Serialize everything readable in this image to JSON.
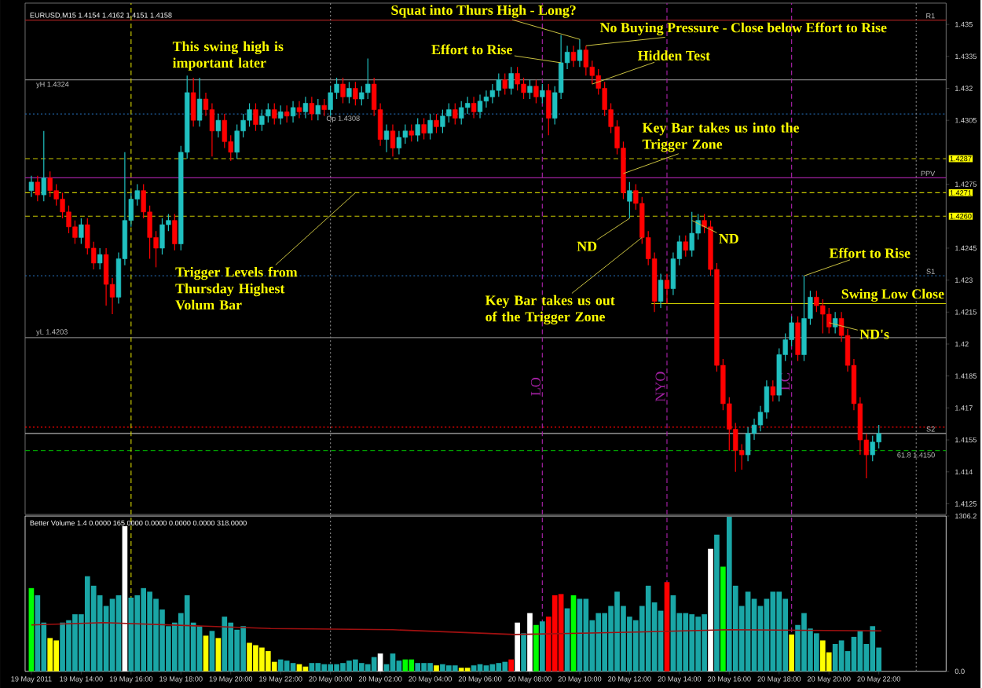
{
  "chart_data": [
    {
      "type": "candlestick",
      "title": "EURUSD,M15  1.4154 1.4162 1.4151 1.4158",
      "x": [
        "2011-05-19T12:00",
        "2011-05-19T12:15",
        "2011-05-19T12:30",
        "2011-05-19T12:45",
        "2011-05-19T13:00",
        "2011-05-19T13:15",
        "2011-05-19T13:30",
        "2011-05-19T13:45",
        "2011-05-19T14:00",
        "2011-05-19T14:15",
        "2011-05-19T14:30",
        "2011-05-19T14:45",
        "2011-05-19T15:00",
        "2011-05-19T15:15",
        "2011-05-19T15:30",
        "2011-05-19T15:45",
        "2011-05-19T16:00",
        "2011-05-19T16:15",
        "2011-05-19T16:30",
        "2011-05-19T16:45",
        "2011-05-19T17:00",
        "2011-05-19T17:15",
        "2011-05-19T17:30",
        "2011-05-19T17:45",
        "2011-05-19T18:00",
        "2011-05-19T18:15",
        "2011-05-19T18:30",
        "2011-05-19T18:45",
        "2011-05-19T19:00",
        "2011-05-19T19:15",
        "2011-05-19T19:30",
        "2011-05-19T19:45",
        "2011-05-19T20:00",
        "2011-05-19T20:15",
        "2011-05-19T20:30",
        "2011-05-19T20:45",
        "2011-05-19T21:00",
        "2011-05-19T21:15",
        "2011-05-19T21:30",
        "2011-05-19T21:45",
        "2011-05-19T22:00",
        "2011-05-19T22:15",
        "2011-05-19T22:30",
        "2011-05-19T22:45",
        "2011-05-19T23:00",
        "2011-05-19T23:15",
        "2011-05-19T23:30",
        "2011-05-19T23:45",
        "2011-05-20T00:00",
        "2011-05-20T00:15",
        "2011-05-20T00:30",
        "2011-05-20T00:45",
        "2011-05-20T01:00",
        "2011-05-20T01:15",
        "2011-05-20T01:30",
        "2011-05-20T01:45",
        "2011-05-20T02:00",
        "2011-05-20T02:15",
        "2011-05-20T02:30",
        "2011-05-20T02:45",
        "2011-05-20T03:00",
        "2011-05-20T03:15",
        "2011-05-20T03:30",
        "2011-05-20T03:45",
        "2011-05-20T04:00",
        "2011-05-20T04:15",
        "2011-05-20T04:30",
        "2011-05-20T04:45",
        "2011-05-20T05:00",
        "2011-05-20T05:15",
        "2011-05-20T05:30",
        "2011-05-20T05:45",
        "2011-05-20T06:00",
        "2011-05-20T06:15",
        "2011-05-20T06:30",
        "2011-05-20T06:45",
        "2011-05-20T07:00",
        "2011-05-20T07:15",
        "2011-05-20T07:30",
        "2011-05-20T07:45",
        "2011-05-20T08:00",
        "2011-05-20T08:15",
        "2011-05-20T08:30",
        "2011-05-20T08:45",
        "2011-05-20T09:00",
        "2011-05-20T09:15",
        "2011-05-20T09:30",
        "2011-05-20T09:45",
        "2011-05-20T10:00",
        "2011-05-20T10:15",
        "2011-05-20T10:30",
        "2011-05-20T10:45",
        "2011-05-20T11:00",
        "2011-05-20T11:15",
        "2011-05-20T11:30",
        "2011-05-20T11:45",
        "2011-05-20T12:00",
        "2011-05-20T12:15",
        "2011-05-20T12:30",
        "2011-05-20T12:45",
        "2011-05-20T13:00",
        "2011-05-20T13:15",
        "2011-05-20T13:30",
        "2011-05-20T13:45",
        "2011-05-20T14:00",
        "2011-05-20T14:15",
        "2011-05-20T14:30",
        "2011-05-20T14:45",
        "2011-05-20T15:00",
        "2011-05-20T15:15",
        "2011-05-20T15:30",
        "2011-05-20T15:45",
        "2011-05-20T16:00",
        "2011-05-20T16:15",
        "2011-05-20T16:30",
        "2011-05-20T16:45",
        "2011-05-20T17:00",
        "2011-05-20T17:15",
        "2011-05-20T17:30",
        "2011-05-20T17:45",
        "2011-05-20T18:00",
        "2011-05-20T18:15",
        "2011-05-20T18:30",
        "2011-05-20T18:45",
        "2011-05-20T19:00",
        "2011-05-20T19:15",
        "2011-05-20T19:30",
        "2011-05-20T19:45",
        "2011-05-20T20:00",
        "2011-05-20T20:15",
        "2011-05-20T20:30",
        "2011-05-20T20:45",
        "2011-05-20T21:00",
        "2011-05-20T21:15",
        "2011-05-20T21:30",
        "2011-05-20T21:45",
        "2011-05-20T22:00"
      ],
      "ohlc": [
        [
          1.4272,
          1.4279,
          1.4269,
          1.4276
        ],
        [
          1.4276,
          1.4279,
          1.4267,
          1.427
        ],
        [
          1.427,
          1.43,
          1.4267,
          1.4278
        ],
        [
          1.4278,
          1.4281,
          1.4269,
          1.4272
        ],
        [
          1.4272,
          1.4275,
          1.4265,
          1.4268
        ],
        [
          1.4268,
          1.4271,
          1.4259,
          1.4262
        ],
        [
          1.4262,
          1.4265,
          1.4252,
          1.4255
        ],
        [
          1.4255,
          1.4258,
          1.4247,
          1.425
        ],
        [
          1.425,
          1.4259,
          1.4247,
          1.4256
        ],
        [
          1.4256,
          1.4259,
          1.4242,
          1.4245
        ],
        [
          1.4245,
          1.4248,
          1.4235,
          1.4238
        ],
        [
          1.4238,
          1.4245,
          1.4235,
          1.4242
        ],
        [
          1.4242,
          1.4245,
          1.4218,
          1.4228
        ],
        [
          1.4228,
          1.4231,
          1.4214,
          1.4222
        ],
        [
          1.4222,
          1.4243,
          1.4219,
          1.424
        ],
        [
          1.424,
          1.429,
          1.4237,
          1.4258
        ],
        [
          1.4258,
          1.4271,
          1.4255,
          1.4268
        ],
        [
          1.4268,
          1.4275,
          1.4265,
          1.4272
        ],
        [
          1.4272,
          1.4275,
          1.4259,
          1.4262
        ],
        [
          1.4262,
          1.4265,
          1.424,
          1.425
        ],
        [
          1.425,
          1.4253,
          1.4236,
          1.4245
        ],
        [
          1.4245,
          1.4259,
          1.4242,
          1.4256
        ],
        [
          1.4256,
          1.4261,
          1.4253,
          1.4258
        ],
        [
          1.4258,
          1.4261,
          1.4244,
          1.4247
        ],
        [
          1.4247,
          1.4293,
          1.4244,
          1.429
        ],
        [
          1.429,
          1.4326,
          1.4287,
          1.4318
        ],
        [
          1.4318,
          1.4325,
          1.4302,
          1.4305
        ],
        [
          1.4305,
          1.4325,
          1.4302,
          1.4315
        ],
        [
          1.4315,
          1.4318,
          1.4307,
          1.431
        ],
        [
          1.431,
          1.4313,
          1.4288,
          1.43
        ],
        [
          1.43,
          1.4308,
          1.4297,
          1.4305
        ],
        [
          1.4305,
          1.4308,
          1.4292,
          1.4295
        ],
        [
          1.4295,
          1.4298,
          1.4286,
          1.429
        ],
        [
          1.429,
          1.4303,
          1.4287,
          1.43
        ],
        [
          1.43,
          1.4308,
          1.4297,
          1.4305
        ],
        [
          1.4305,
          1.4313,
          1.4302,
          1.431
        ],
        [
          1.431,
          1.4313,
          1.43,
          1.4303
        ],
        [
          1.4303,
          1.431,
          1.43,
          1.4307
        ],
        [
          1.4307,
          1.4313,
          1.4304,
          1.431
        ],
        [
          1.431,
          1.4313,
          1.4303,
          1.4306
        ],
        [
          1.4306,
          1.4312,
          1.4303,
          1.4309
        ],
        [
          1.4309,
          1.4312,
          1.4304,
          1.4307
        ],
        [
          1.4307,
          1.4314,
          1.4304,
          1.4311
        ],
        [
          1.4311,
          1.4314,
          1.4306,
          1.4309
        ],
        [
          1.4309,
          1.4316,
          1.4306,
          1.4313
        ],
        [
          1.4313,
          1.4316,
          1.4305,
          1.4308
        ],
        [
          1.4308,
          1.4315,
          1.4305,
          1.4312
        ],
        [
          1.4312,
          1.4315,
          1.4307,
          1.431
        ],
        [
          1.431,
          1.4321,
          1.4307,
          1.4318
        ],
        [
          1.4318,
          1.4325,
          1.4315,
          1.4322
        ],
        [
          1.4322,
          1.4325,
          1.4313,
          1.4316
        ],
        [
          1.4316,
          1.4323,
          1.4313,
          1.432
        ],
        [
          1.432,
          1.4323,
          1.4312,
          1.4315
        ],
        [
          1.4315,
          1.4321,
          1.4312,
          1.4318
        ],
        [
          1.4318,
          1.4334,
          1.4315,
          1.4322
        ],
        [
          1.4322,
          1.4325,
          1.4307,
          1.431
        ],
        [
          1.431,
          1.4313,
          1.4293,
          1.4296
        ],
        [
          1.4296,
          1.4303,
          1.429,
          1.43
        ],
        [
          1.43,
          1.4303,
          1.4288,
          1.4292
        ],
        [
          1.4292,
          1.43,
          1.4289,
          1.4297
        ],
        [
          1.4297,
          1.4303,
          1.4294,
          1.43
        ],
        [
          1.43,
          1.4303,
          1.4295,
          1.4298
        ],
        [
          1.4298,
          1.4306,
          1.4295,
          1.4303
        ],
        [
          1.4303,
          1.4306,
          1.4296,
          1.4299
        ],
        [
          1.4299,
          1.4308,
          1.4296,
          1.4305
        ],
        [
          1.4305,
          1.4308,
          1.4299,
          1.4302
        ],
        [
          1.4302,
          1.431,
          1.4299,
          1.4307
        ],
        [
          1.4307,
          1.4313,
          1.4304,
          1.431
        ],
        [
          1.431,
          1.4313,
          1.4303,
          1.4306
        ],
        [
          1.4306,
          1.4314,
          1.4303,
          1.4311
        ],
        [
          1.4311,
          1.4316,
          1.4308,
          1.4313
        ],
        [
          1.4313,
          1.4316,
          1.4306,
          1.4309
        ],
        [
          1.4309,
          1.4317,
          1.4306,
          1.4314
        ],
        [
          1.4314,
          1.4319,
          1.4311,
          1.4316
        ],
        [
          1.4316,
          1.4322,
          1.4313,
          1.4319
        ],
        [
          1.4319,
          1.4327,
          1.4316,
          1.4324
        ],
        [
          1.4324,
          1.4327,
          1.4317,
          1.432
        ],
        [
          1.432,
          1.433,
          1.4317,
          1.4327
        ],
        [
          1.4327,
          1.433,
          1.4319,
          1.4322
        ],
        [
          1.4322,
          1.4325,
          1.4315,
          1.4318
        ],
        [
          1.4318,
          1.4324,
          1.4315,
          1.4321
        ],
        [
          1.4321,
          1.4324,
          1.4313,
          1.4316
        ],
        [
          1.4316,
          1.4322,
          1.4313,
          1.4319
        ],
        [
          1.4319,
          1.4322,
          1.4298,
          1.4306
        ],
        [
          1.4306,
          1.4321,
          1.4303,
          1.4318
        ],
        [
          1.4318,
          1.4345,
          1.4315,
          1.4332
        ],
        [
          1.4332,
          1.434,
          1.4329,
          1.4337
        ],
        [
          1.4337,
          1.434,
          1.433,
          1.4333
        ],
        [
          1.4333,
          1.4343,
          1.433,
          1.4338
        ],
        [
          1.4338,
          1.434,
          1.4326,
          1.433
        ],
        [
          1.433,
          1.4333,
          1.4322,
          1.4326
        ],
        [
          1.4326,
          1.4329,
          1.4317,
          1.432
        ],
        [
          1.432,
          1.4323,
          1.4307,
          1.431
        ],
        [
          1.431,
          1.4313,
          1.4299,
          1.4302
        ],
        [
          1.4302,
          1.4305,
          1.4289,
          1.4292
        ],
        [
          1.4292,
          1.4295,
          1.4268,
          1.4271
        ],
        [
          1.4267,
          1.4276,
          1.4259,
          1.4272
        ],
        [
          1.4272,
          1.4275,
          1.4263,
          1.4266
        ],
        [
          1.4266,
          1.4269,
          1.4247,
          1.425
        ],
        [
          1.425,
          1.4253,
          1.4237,
          1.424
        ],
        [
          1.424,
          1.4243,
          1.4215,
          1.422
        ],
        [
          1.422,
          1.4233,
          1.4217,
          1.423
        ],
        [
          1.423,
          1.4233,
          1.4219,
          1.4226
        ],
        [
          1.4226,
          1.4243,
          1.4223,
          1.424
        ],
        [
          1.424,
          1.4251,
          1.4237,
          1.4248
        ],
        [
          1.4248,
          1.4251,
          1.4241,
          1.4244
        ],
        [
          1.4244,
          1.4262,
          1.4241,
          1.4252
        ],
        [
          1.4252,
          1.4261,
          1.4249,
          1.4258
        ],
        [
          1.4258,
          1.4261,
          1.4252,
          1.4255
        ],
        [
          1.4255,
          1.4258,
          1.4232,
          1.4235
        ],
        [
          1.4235,
          1.4238,
          1.4187,
          1.419
        ],
        [
          1.419,
          1.4193,
          1.4169,
          1.4172
        ],
        [
          1.4172,
          1.4175,
          1.415,
          1.416
        ],
        [
          1.416,
          1.4163,
          1.414,
          1.415
        ],
        [
          1.415,
          1.4153,
          1.4141,
          1.4148
        ],
        [
          1.4148,
          1.4161,
          1.4145,
          1.4158
        ],
        [
          1.4158,
          1.4165,
          1.4155,
          1.4162
        ],
        [
          1.4162,
          1.4171,
          1.4159,
          1.4168
        ],
        [
          1.4168,
          1.4183,
          1.4165,
          1.418
        ],
        [
          1.418,
          1.4183,
          1.4173,
          1.4176
        ],
        [
          1.4176,
          1.4198,
          1.4173,
          1.4195
        ],
        [
          1.4195,
          1.4205,
          1.4192,
          1.4202
        ],
        [
          1.4202,
          1.4213,
          1.4199,
          1.421
        ],
        [
          1.421,
          1.4213,
          1.4192,
          1.4195
        ],
        [
          1.4195,
          1.4232,
          1.4192,
          1.4212
        ],
        [
          1.4212,
          1.4225,
          1.4209,
          1.4222
        ],
        [
          1.4222,
          1.4225,
          1.4215,
          1.4218
        ],
        [
          1.4218,
          1.4221,
          1.4205,
          1.4214
        ],
        [
          1.4214,
          1.4217,
          1.4205,
          1.4208
        ],
        [
          1.4208,
          1.4215,
          1.4205,
          1.4212
        ],
        [
          1.4212,
          1.4215,
          1.4201,
          1.4204
        ],
        [
          1.4204,
          1.4207,
          1.4187,
          1.419
        ],
        [
          1.419,
          1.4193,
          1.4169,
          1.4172
        ],
        [
          1.4172,
          1.4175,
          1.4148,
          1.4155
        ],
        [
          1.4155,
          1.4158,
          1.4137,
          1.4148
        ],
        [
          1.4148,
          1.4157,
          1.4145,
          1.4154
        ],
        [
          1.4154,
          1.4162,
          1.4151,
          1.4158
        ]
      ],
      "xlim": [
        "2011-05-19T11:45",
        "2011-05-21T00:42"
      ],
      "ylim": [
        1.412,
        1.436
      ],
      "yticks": [
        1.435,
        1.4335,
        1.432,
        1.4305,
        1.4275,
        1.4245,
        1.423,
        1.4215,
        1.42,
        1.4185,
        1.417,
        1.4155,
        1.414,
        1.4125
      ],
      "tick_labels": "y",
      "ref_lines": [
        {
          "axis": "y",
          "value": 1.4352,
          "label": "R1",
          "color": "#a02020",
          "line_style": "solid"
        },
        {
          "axis": "y",
          "value": 1.4324,
          "label": "yH 1.4324",
          "color": "#808080",
          "line_style": "solid"
        },
        {
          "axis": "y",
          "value": 1.4308,
          "label": "Op 1.4308",
          "color": "#2060a0",
          "line_style": "dotted"
        },
        {
          "axis": "y",
          "value": 1.4287,
          "label": "1.4287",
          "color": "#c8c800",
          "line_style": "dashed"
        },
        {
          "axis": "y",
          "value": 1.4278,
          "label": "PPV",
          "color": "#a020a0",
          "line_style": "solid"
        },
        {
          "axis": "y",
          "value": 1.4271,
          "label": "1.4271",
          "color": "#c8c800",
          "line_style": "dashed"
        },
        {
          "axis": "y",
          "value": 1.426,
          "label": "1.4260",
          "color": "#c8c800",
          "line_style": "dashed"
        },
        {
          "axis": "y",
          "value": 1.4232,
          "label": "S1",
          "color": "#2060a0",
          "line_style": "dotted"
        },
        {
          "axis": "y",
          "value": 1.4219,
          "label": "Swing Low Close",
          "color": "#c8c800",
          "line_style": "solid"
        },
        {
          "axis": "y",
          "value": 1.4203,
          "label": "yL 1.4203",
          "color": "#808080",
          "line_style": "solid"
        },
        {
          "axis": "y",
          "value": 1.4161,
          "color": "#ff0000",
          "line_style": "dotted"
        },
        {
          "axis": "y",
          "value": 1.4158,
          "label": "S2",
          "color": "#b0b0b0",
          "line_style": "solid"
        },
        {
          "axis": "y",
          "value": 1.415,
          "label": "61.8 1.4150",
          "color": "#00a000",
          "line_style": "dashed"
        },
        {
          "axis": "x",
          "value": "2011-05-19T16:00",
          "color": "#c8c800",
          "line_style": "dashed"
        },
        {
          "axis": "x",
          "value": "2011-05-20T00:00",
          "color": "#808080",
          "line_style": "dotted"
        },
        {
          "axis": "x",
          "value": "2011-05-20T08:30",
          "label": "LO",
          "color": "#a020a0",
          "line_style": "dashed"
        },
        {
          "axis": "x",
          "value": "2011-05-20T13:30",
          "label": "NYO",
          "color": "#a020a0",
          "line_style": "dashed"
        },
        {
          "axis": "x",
          "value": "2011-05-20T18:30",
          "label": "LC",
          "color": "#a020a0",
          "line_style": "dashed"
        },
        {
          "axis": "x",
          "value": "2011-05-20T23:30",
          "color": "#808080",
          "line_style": "dotted"
        }
      ],
      "annotations": [
        "This swing high is important later",
        {
          "text": "Squat into Thurs High - Long?",
          "x": "2011-05-20T10:00",
          "y": 1.4343
        },
        {
          "text": "No Buying Pressure - Close below Effort to Rise",
          "x": "2011-05-20T10:15",
          "y": 1.434
        },
        {
          "text": "Effort to Rise",
          "x": "2011-05-20T09:15",
          "y": 1.4332
        },
        {
          "text": "Hidden Test",
          "x": "2011-05-20T10:30",
          "y": 1.4322
        },
        {
          "text": "Key Bar takes us into the Trigger Zone",
          "x": "2011-05-20T11:45",
          "y": 1.428
        },
        {
          "text": "ND",
          "x": "2011-05-20T12:00",
          "y": 1.4259
        },
        {
          "text": "Key Bar takes us out of the Trigger Zone",
          "x": "2011-05-20T12:30",
          "y": 1.425
        },
        {
          "text": "ND",
          "x": "2011-05-20T14:30",
          "y": 1.4258
        },
        {
          "text": "Effort to Rise",
          "x": "2011-05-20T19:00",
          "y": 1.4232
        },
        {
          "text": "ND's",
          "x": "2011-05-20T20:00",
          "y": 1.421
        },
        {
          "text": "Trigger Levels from Thursday Highest Volum Bar",
          "x": "2011-05-20T01:00",
          "y": 1.4271
        }
      ]
    },
    {
      "type": "bar",
      "title": "Better Volume 1.4 0.0000 165.0000 0.0000 0.0000 0.0000 318.0000",
      "x": [
        "2011-05-19T12:00",
        "2011-05-19T12:15",
        "2011-05-19T12:30",
        "2011-05-19T12:45",
        "2011-05-19T13:00",
        "2011-05-19T13:15",
        "2011-05-19T13:30",
        "2011-05-19T13:45",
        "2011-05-19T14:00",
        "2011-05-19T14:15",
        "2011-05-19T14:30",
        "2011-05-19T14:45",
        "2011-05-19T15:00",
        "2011-05-19T15:15",
        "2011-05-19T15:30",
        "2011-05-19T15:45",
        "2011-05-19T16:00",
        "2011-05-19T16:15",
        "2011-05-19T16:30",
        "2011-05-19T16:45",
        "2011-05-19T17:00",
        "2011-05-19T17:15",
        "2011-05-19T17:30",
        "2011-05-19T17:45",
        "2011-05-19T18:00",
        "2011-05-19T18:15",
        "2011-05-19T18:30",
        "2011-05-19T18:45",
        "2011-05-19T19:00",
        "2011-05-19T19:15",
        "2011-05-19T19:30",
        "2011-05-19T19:45",
        "2011-05-19T20:00",
        "2011-05-19T20:15",
        "2011-05-19T20:30",
        "2011-05-19T20:45",
        "2011-05-19T21:00",
        "2011-05-19T21:15",
        "2011-05-19T21:30",
        "2011-05-19T21:45",
        "2011-05-19T22:00",
        "2011-05-19T22:15",
        "2011-05-19T22:30",
        "2011-05-19T22:45",
        "2011-05-19T23:00",
        "2011-05-19T23:15",
        "2011-05-19T23:30",
        "2011-05-19T23:45",
        "2011-05-20T00:00",
        "2011-05-20T00:15",
        "2011-05-20T00:30",
        "2011-05-20T00:45",
        "2011-05-20T01:00",
        "2011-05-20T01:15",
        "2011-05-20T01:30",
        "2011-05-20T01:45",
        "2011-05-20T02:00",
        "2011-05-20T02:15",
        "2011-05-20T02:30",
        "2011-05-20T02:45",
        "2011-05-20T03:00",
        "2011-05-20T03:15",
        "2011-05-20T03:30",
        "2011-05-20T03:45",
        "2011-05-20T04:00",
        "2011-05-20T04:15",
        "2011-05-20T04:30",
        "2011-05-20T04:45",
        "2011-05-20T05:00",
        "2011-05-20T05:15",
        "2011-05-20T05:30",
        "2011-05-20T05:45",
        "2011-05-20T06:00",
        "2011-05-20T06:15",
        "2011-05-20T06:30",
        "2011-05-20T06:45",
        "2011-05-20T07:00",
        "2011-05-20T07:15",
        "2011-05-20T07:30",
        "2011-05-20T07:45",
        "2011-05-20T08:00",
        "2011-05-20T08:15",
        "2011-05-20T08:30",
        "2011-05-20T08:45",
        "2011-05-20T09:00",
        "2011-05-20T09:15",
        "2011-05-20T09:30",
        "2011-05-20T09:45",
        "2011-05-20T10:00",
        "2011-05-20T10:15",
        "2011-05-20T10:30",
        "2011-05-20T10:45",
        "2011-05-20T11:00",
        "2011-05-20T11:15",
        "2011-05-20T11:30",
        "2011-05-20T11:45",
        "2011-05-20T12:00",
        "2011-05-20T12:15",
        "2011-05-20T12:30",
        "2011-05-20T12:45",
        "2011-05-20T13:00",
        "2011-05-20T13:15",
        "2011-05-20T13:30",
        "2011-05-20T13:45",
        "2011-05-20T14:00",
        "2011-05-20T14:15",
        "2011-05-20T14:30",
        "2011-05-20T14:45",
        "2011-05-20T15:00",
        "2011-05-20T15:15",
        "2011-05-20T15:30",
        "2011-05-20T15:45",
        "2011-05-20T16:00",
        "2011-05-20T16:15",
        "2011-05-20T16:30",
        "2011-05-20T16:45",
        "2011-05-20T17:00",
        "2011-05-20T17:15",
        "2011-05-20T17:30",
        "2011-05-20T17:45",
        "2011-05-20T18:00",
        "2011-05-20T18:15",
        "2011-05-20T18:30",
        "2011-05-20T18:45",
        "2011-05-20T19:00",
        "2011-05-20T19:15",
        "2011-05-20T19:30",
        "2011-05-20T19:45",
        "2011-05-20T20:00",
        "2011-05-20T20:15",
        "2011-05-20T20:30",
        "2011-05-20T20:45",
        "2011-05-20T21:00",
        "2011-05-20T21:15",
        "2011-05-20T21:30",
        "2011-05-20T21:45",
        "2011-05-20T22:00"
      ],
      "series": [
        {
          "type": "bar",
          "values": [
            700,
            640,
            410,
            280,
            260,
            410,
            430,
            480,
            480,
            800,
            720,
            640,
            550,
            610,
            640,
            1220,
            620,
            640,
            700,
            670,
            610,
            520,
            380,
            410,
            490,
            640,
            410,
            380,
            300,
            340,
            280,
            460,
            410,
            350,
            380,
            240,
            220,
            200,
            170,
            80,
            100,
            90,
            70,
            60,
            40,
            70,
            70,
            60,
            60,
            60,
            70,
            90,
            100,
            70,
            60,
            120,
            150,
            60,
            150,
            90,
            100,
            100,
            70,
            70,
            70,
            50,
            60,
            50,
            50,
            30,
            30,
            50,
            60,
            50,
            60,
            70,
            80,
            100,
            410,
            320,
            490,
            390,
            420,
            460,
            640,
            650,
            530,
            640,
            610,
            610,
            430,
            490,
            490,
            550,
            670,
            550,
            460,
            430,
            550,
            720,
            580,
            510,
            750,
            640,
            490,
            490,
            480,
            460,
            480,
            1030,
            1150,
            880,
            1300,
            720,
            550,
            670,
            610,
            550,
            610,
            670,
            670,
            610,
            310,
            390,
            490,
            360,
            320,
            260,
            160,
            230,
            260,
            170,
            290,
            340,
            230,
            380,
            200
          ],
          "colors": [
            "#00ff00",
            "#1aa6a6",
            "#1aa6a6",
            "#ffff00",
            "#ffff00",
            "#1aa6a6",
            "#1aa6a6",
            "#1aa6a6",
            "#1aa6a6",
            "#1aa6a6",
            "#1aa6a6",
            "#1aa6a6",
            "#1aa6a6",
            "#1aa6a6",
            "#1aa6a6",
            "#ffffff",
            "#1aa6a6",
            "#1aa6a6",
            "#1aa6a6",
            "#1aa6a6",
            "#1aa6a6",
            "#1aa6a6",
            "#1aa6a6",
            "#1aa6a6",
            "#1aa6a6",
            "#1aa6a6",
            "#1aa6a6",
            "#1aa6a6",
            "#ffff00",
            "#1aa6a6",
            "#ffff00",
            "#1aa6a6",
            "#1aa6a6",
            "#1aa6a6",
            "#1aa6a6",
            "#ffff00",
            "#ffff00",
            "#ffff00",
            "#ffff00",
            "#ffff00",
            "#1aa6a6",
            "#1aa6a6",
            "#1aa6a6",
            "#ffff00",
            "#ffff00",
            "#1aa6a6",
            "#1aa6a6",
            "#1aa6a6",
            "#1aa6a6",
            "#1aa6a6",
            "#1aa6a6",
            "#1aa6a6",
            "#1aa6a6",
            "#1aa6a6",
            "#1aa6a6",
            "#1aa6a6",
            "#ffffff",
            "#1aa6a6",
            "#1aa6a6",
            "#1aa6a6",
            "#00ff00",
            "#00ff00",
            "#1aa6a6",
            "#1aa6a6",
            "#1aa6a6",
            "#ffff00",
            "#1aa6a6",
            "#1aa6a6",
            "#1aa6a6",
            "#ffff00",
            "#ffff00",
            "#1aa6a6",
            "#1aa6a6",
            "#1aa6a6",
            "#1aa6a6",
            "#1aa6a6",
            "#1aa6a6",
            "#ff0000",
            "#ffffff",
            "#1aa6a6",
            "#ffffff",
            "#00ff00",
            "#1aa6a6",
            "#ff0000",
            "#ff0000",
            "#ff0000",
            "#1aa6a6",
            "#00ff00",
            "#1aa6a6",
            "#1aa6a6",
            "#1aa6a6",
            "#1aa6a6",
            "#1aa6a6",
            "#1aa6a6",
            "#1aa6a6",
            "#1aa6a6",
            "#1aa6a6",
            "#1aa6a6",
            "#1aa6a6",
            "#1aa6a6",
            "#1aa6a6",
            "#1aa6a6",
            "#ff0000",
            "#1aa6a6",
            "#1aa6a6",
            "#1aa6a6",
            "#1aa6a6",
            "#1aa6a6",
            "#1aa6a6",
            "#ffffff",
            "#1aa6a6",
            "#00ff00",
            "#1aa6a6",
            "#1aa6a6",
            "#1aa6a6",
            "#1aa6a6",
            "#1aa6a6",
            "#1aa6a6",
            "#1aa6a6",
            "#1aa6a6",
            "#1aa6a6",
            "#1aa6a6",
            "#ffff00",
            "#1aa6a6",
            "#1aa6a6",
            "#1aa6a6",
            "#1aa6a6",
            "#ffff00",
            "#ffff00",
            "#1aa6a6",
            "#1aa6a6",
            "#1aa6a6",
            "#1aa6a6",
            "#1aa6a6",
            "#1aa6a6",
            "#1aa6a6",
            "#1aa6a6"
          ]
        },
        {
          "type": "line",
          "color": "#a01010",
          "x": [
            "2011-05-19T12:00",
            "2011-05-19T14:54",
            "2011-05-19T21:36",
            "2011-05-20T02:30",
            "2011-05-20T07:24",
            "2011-05-20T12:18",
            "2011-05-20T16:00",
            "2011-05-20T22:06"
          ],
          "values": [
            390,
            410,
            360,
            350,
            310,
            330,
            350,
            340
          ]
        }
      ],
      "xlim": [
        "2011-05-19T11:45",
        "2011-05-21T00:42"
      ],
      "ylim": [
        0,
        1306.2
      ],
      "yticks": [
        {
          "value": 0,
          "label": "0.0"
        },
        1306.2
      ],
      "xticks": [
        {
          "value": "2011-05-19T12:00",
          "label": "19 May 2011"
        },
        {
          "value": "2011-05-19T14:00",
          "label": "19 May 14:00"
        },
        {
          "value": "2011-05-19T16:00",
          "label": "19 May 16:00"
        },
        {
          "value": "2011-05-19T18:00",
          "label": "19 May 18:00"
        },
        {
          "value": "2011-05-19T20:00",
          "label": "19 May 20:00"
        },
        {
          "value": "2011-05-19T22:00",
          "label": "19 May 22:00"
        },
        {
          "value": "2011-05-20T00:00",
          "label": "20 May 00:00"
        },
        {
          "value": "2011-05-20T02:00",
          "label": "20 May 02:00"
        },
        {
          "value": "2011-05-20T04:00",
          "label": "20 May 04:00"
        },
        {
          "value": "2011-05-20T06:00",
          "label": "20 May 06:00"
        },
        {
          "value": "2011-05-20T08:00",
          "label": "20 May 08:00"
        },
        {
          "value": "2011-05-20T10:00",
          "label": "20 May 10:00"
        },
        {
          "value": "2011-05-20T12:00",
          "label": "20 May 12:00"
        },
        {
          "value": "2011-05-20T14:00",
          "label": "20 May 14:00"
        },
        {
          "value": "2011-05-20T16:00",
          "label": "20 May 16:00"
        },
        {
          "value": "2011-05-20T18:00",
          "label": "20 May 18:00"
        },
        {
          "value": "2011-05-20T20:00",
          "label": "20 May 20:00"
        },
        {
          "value": "2011-05-20T22:00",
          "label": "20 May 22:00"
        }
      ],
      "ref_lines": [
        {
          "axis": "x",
          "value": "2011-05-19T16:00",
          "color": "#c8c800",
          "line_style": "dashed"
        },
        {
          "axis": "x",
          "value": "2011-05-20T00:00",
          "color": "#808080",
          "line_style": "dotted"
        },
        {
          "axis": "x",
          "value": "2011-05-20T08:30",
          "color": "#a020a0",
          "line_style": "dashed"
        },
        {
          "axis": "x",
          "value": "2011-05-20T13:30",
          "color": "#a020a0",
          "line_style": "dashed"
        },
        {
          "axis": "x",
          "value": "2011-05-20T18:30",
          "color": "#a020a0",
          "line_style": "dashed"
        },
        {
          "axis": "x",
          "value": "2011-05-20T23:30",
          "color": "#808080",
          "line_style": "dotted"
        }
      ]
    }
  ]
}
